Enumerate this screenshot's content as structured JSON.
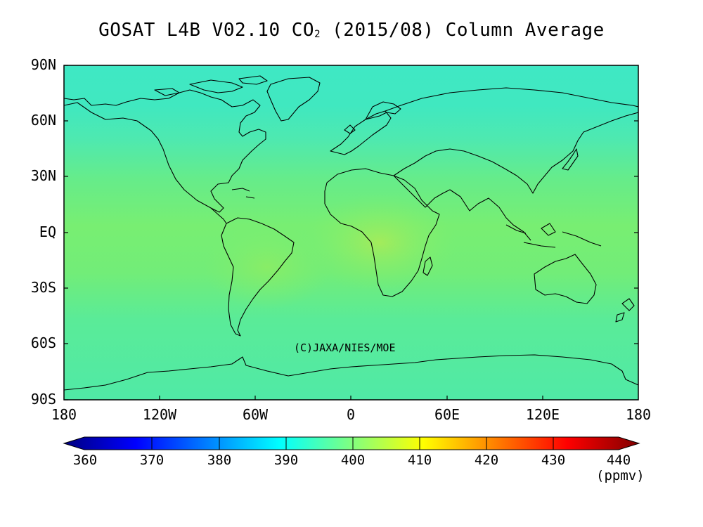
{
  "title": {
    "main": "GOSAT L4B V02.10 CO",
    "subscript": "2",
    "suffix": " (2015/08) Column Average"
  },
  "map": {
    "lat_labels": [
      "90N",
      "60N",
      "30N",
      "EQ",
      "30S",
      "60S",
      "90S"
    ],
    "lon_labels": [
      "180",
      "120W",
      "60W",
      "0",
      "60E",
      "120E",
      "180"
    ],
    "copyright": "(C)JAXA/NIES/MOE",
    "field_colors": {
      "polar": "#3fe8c4",
      "mid": "#55eca0",
      "tropics": "#78ee72",
      "africa_hotspot": "#a8ec58"
    },
    "coastline_color": "#000000"
  },
  "colorbar": {
    "labels": [
      "360",
      "370",
      "380",
      "390",
      "400",
      "410",
      "420",
      "430",
      "440"
    ],
    "unit": "(ppmv)",
    "min": 360,
    "max": 440,
    "colors": [
      "#000080",
      "#0000ff",
      "#0080ff",
      "#00ffff",
      "#80ff80",
      "#ffff00",
      "#ff8000",
      "#ff0000",
      "#800000"
    ]
  }
}
